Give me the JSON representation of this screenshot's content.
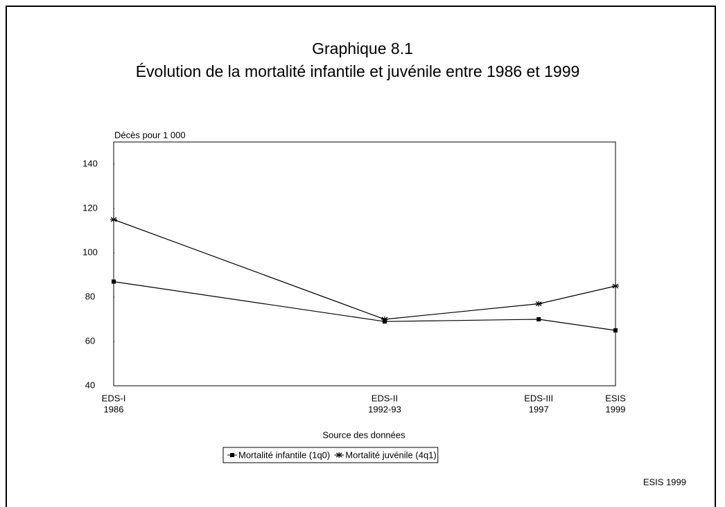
{
  "chart_data": {
    "type": "line",
    "title": "Graphique 8.1",
    "subtitle": "Évolution de la mortalité infantile et juvénile entre 1986 et 1999",
    "y_label": "Décès pour 1 000",
    "x_label": "Source des données",
    "source": "ESIS 1999",
    "categories": [
      [
        "EDS-I",
        "1986"
      ],
      [
        "EDS-II",
        "1992-93"
      ],
      [
        "EDS-III",
        "1997"
      ],
      [
        "ESIS",
        "1999"
      ]
    ],
    "series": [
      {
        "name": "Mortalité infantile (1q0)",
        "color": "#000000",
        "marker": "square",
        "values": [
          87,
          69,
          70,
          65
        ]
      },
      {
        "name": "Mortalité juvénile (4q1)",
        "color": "#000000",
        "marker": "star",
        "values": [
          115,
          70,
          77,
          85
        ]
      }
    ],
    "ylim": [
      40,
      150
    ],
    "yticks": [
      40,
      60,
      80,
      100,
      120,
      140
    ]
  }
}
